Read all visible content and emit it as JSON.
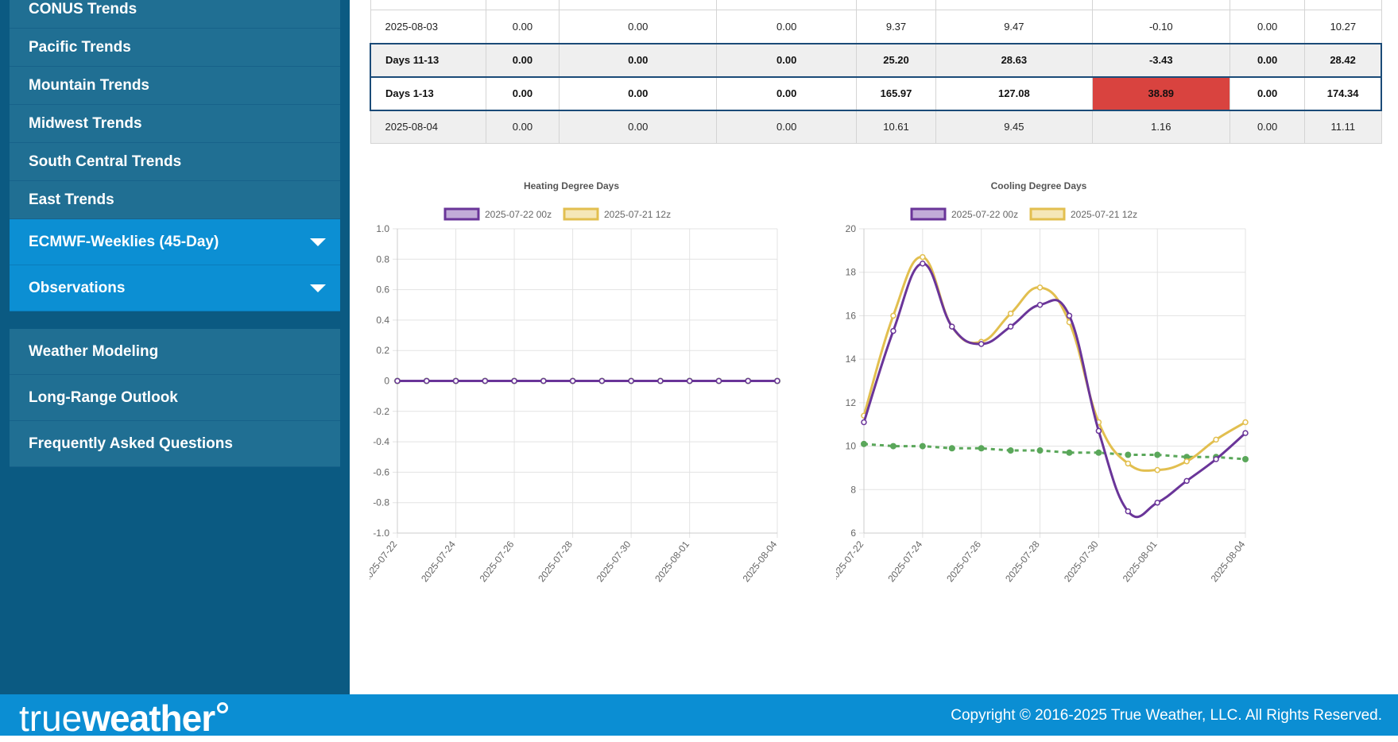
{
  "sidebar": {
    "items": [
      {
        "label": "CONUS Trends",
        "active": false
      },
      {
        "label": "Pacific Trends",
        "active": false
      },
      {
        "label": "Mountain Trends",
        "active": false
      },
      {
        "label": "Midwest Trends",
        "active": false
      },
      {
        "label": "South Central Trends",
        "active": false
      },
      {
        "label": "East Trends",
        "active": false
      },
      {
        "label": "ECMWF-Weeklies (45-Day)",
        "active": true,
        "dropdown": true
      },
      {
        "label": "Observations",
        "active": true,
        "dropdown": true
      }
    ],
    "secondary": [
      {
        "label": "Weather Modeling"
      },
      {
        "label": "Long-Range Outlook"
      },
      {
        "label": "Frequently Asked Questions"
      }
    ]
  },
  "table": {
    "rows": [
      {
        "cells": [
          "",
          "",
          "",
          "",
          "",
          "",
          "",
          "",
          ""
        ],
        "kind": "header"
      },
      {
        "cells": [
          "2025-08-03",
          "0.00",
          "0.00",
          "0.00",
          "9.37",
          "9.47",
          "-0.10",
          "0.00",
          "10.27"
        ],
        "kind": "plain"
      },
      {
        "cells": [
          "Days 11-13",
          "0.00",
          "0.00",
          "0.00",
          "25.20",
          "28.63",
          "-3.43",
          "0.00",
          "28.42"
        ],
        "kind": "summary-shade"
      },
      {
        "cells": [
          "Days 1-13",
          "0.00",
          "0.00",
          "0.00",
          "165.97",
          "127.08",
          "38.89",
          "0.00",
          "174.34"
        ],
        "kind": "summary-plain",
        "highlight_index": 6
      },
      {
        "cells": [
          "2025-08-04",
          "0.00",
          "0.00",
          "0.00",
          "10.61",
          "9.45",
          "1.16",
          "0.00",
          "11.11"
        ],
        "kind": "shade"
      }
    ]
  },
  "colors": {
    "series_current": "#6a3599",
    "series_previous": "#e2bf4f",
    "series_normal": "#5aa75a",
    "highlight": "#d9433f"
  },
  "chart_data": [
    {
      "type": "line",
      "title": "Heating Degree Days",
      "x": [
        "2025-07-22",
        "2025-07-23",
        "2025-07-24",
        "2025-07-25",
        "2025-07-26",
        "2025-07-27",
        "2025-07-28",
        "2025-07-29",
        "2025-07-30",
        "2025-07-31",
        "2025-08-01",
        "2025-08-02",
        "2025-08-03",
        "2025-08-04"
      ],
      "xticks": [
        "2025-07-22",
        "2025-07-24",
        "2025-07-26",
        "2025-07-28",
        "2025-07-30",
        "2025-08-01",
        "2025-08-04"
      ],
      "ylim": [
        -1.0,
        1.0
      ],
      "yticks": [
        "1.0",
        "0.8",
        "0.6",
        "0.4",
        "0.2",
        "0",
        "-0.2",
        "-0.4",
        "-0.6",
        "-0.8",
        "-1.0"
      ],
      "legend": [
        {
          "name": "2025-07-22 00z"
        },
        {
          "name": "2025-07-21 12z"
        }
      ],
      "series": [
        {
          "color_key": "series_normal",
          "dashed": true,
          "values": [
            0,
            0,
            0,
            0,
            0,
            0,
            0,
            0,
            0,
            0,
            0,
            0,
            0,
            0
          ]
        },
        {
          "color_key": "series_previous",
          "values": [
            0,
            0,
            0,
            0,
            0,
            0,
            0,
            0,
            0,
            0,
            0,
            0,
            0,
            0
          ]
        },
        {
          "color_key": "series_current",
          "values": [
            0,
            0,
            0,
            0,
            0,
            0,
            0,
            0,
            0,
            0,
            0,
            0,
            0,
            0
          ]
        }
      ]
    },
    {
      "type": "line",
      "title": "Cooling Degree Days",
      "x": [
        "2025-07-22",
        "2025-07-23",
        "2025-07-24",
        "2025-07-25",
        "2025-07-26",
        "2025-07-27",
        "2025-07-28",
        "2025-07-29",
        "2025-07-30",
        "2025-07-31",
        "2025-08-01",
        "2025-08-02",
        "2025-08-03",
        "2025-08-04"
      ],
      "xticks": [
        "2025-07-22",
        "2025-07-24",
        "2025-07-26",
        "2025-07-28",
        "2025-07-30",
        "2025-08-01",
        "2025-08-04"
      ],
      "ylim": [
        6,
        20
      ],
      "yticks": [
        "20",
        "18",
        "16",
        "14",
        "12",
        "10",
        "8",
        "6"
      ],
      "legend": [
        {
          "name": "2025-07-22 00z"
        },
        {
          "name": "2025-07-21 12z"
        }
      ],
      "series": [
        {
          "color_key": "series_normal",
          "dashed": true,
          "values": [
            10.1,
            10.0,
            10.0,
            9.9,
            9.9,
            9.8,
            9.8,
            9.7,
            9.7,
            9.6,
            9.6,
            9.5,
            9.5,
            9.4
          ]
        },
        {
          "color_key": "series_previous",
          "values": [
            11.4,
            16.0,
            18.7,
            15.5,
            14.8,
            16.1,
            17.3,
            15.7,
            11.1,
            9.2,
            8.9,
            9.3,
            10.3,
            11.1
          ]
        },
        {
          "color_key": "series_current",
          "values": [
            11.1,
            15.3,
            18.4,
            15.5,
            14.7,
            15.5,
            16.5,
            16.0,
            10.7,
            7.0,
            7.4,
            8.4,
            9.4,
            10.6
          ]
        }
      ]
    }
  ],
  "footer": {
    "logo_light": "true",
    "logo_bold": "weather",
    "copyright": "Copyright © 2016-2025 True Weather, LLC. All Rights Reserved."
  }
}
